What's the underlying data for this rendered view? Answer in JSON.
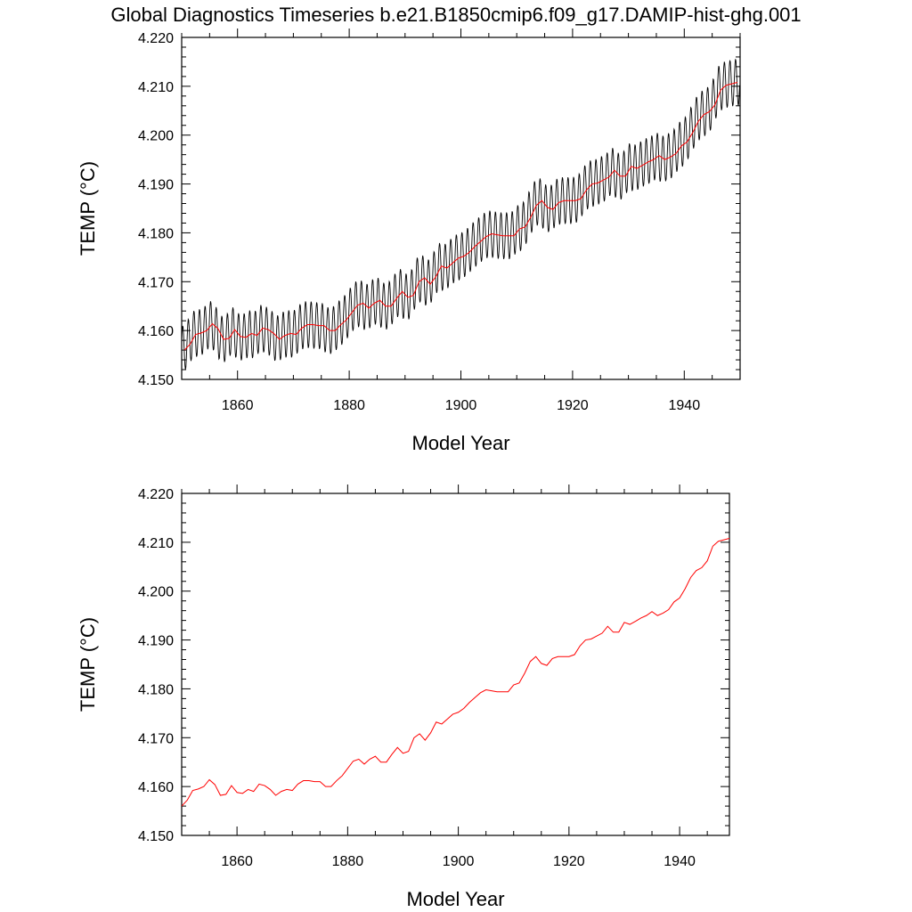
{
  "title": "Global Diagnostics Timeseries b.e21.B1850cmip6.f09_g17.DAMIP-hist-ghg.001",
  "chart_data": [
    {
      "type": "line",
      "xlabel": "Model Year",
      "ylabel": "TEMP (°C)",
      "xlim": [
        1850,
        1950
      ],
      "ylim": [
        4.15,
        4.22
      ],
      "xticks": [
        "1860",
        "1880",
        "1900",
        "1920",
        "1940"
      ],
      "yticks": [
        "4.150",
        "4.160",
        "4.170",
        "4.180",
        "4.190",
        "4.200",
        "4.210",
        "4.220"
      ],
      "grid": false,
      "series": [
        {
          "kind": "monthly",
          "color": "#000000",
          "amplitude": 0.0048,
          "base_series": "annual"
        },
        {
          "kind": "annual",
          "color": "#ff0000",
          "x": [
            1850,
            1851,
            1852,
            1853,
            1854,
            1855,
            1856,
            1857,
            1858,
            1859,
            1860,
            1861,
            1862,
            1863,
            1864,
            1865,
            1866,
            1867,
            1868,
            1869,
            1870,
            1871,
            1872,
            1873,
            1874,
            1875,
            1876,
            1877,
            1878,
            1879,
            1880,
            1881,
            1882,
            1883,
            1884,
            1885,
            1886,
            1887,
            1888,
            1889,
            1890,
            1891,
            1892,
            1893,
            1894,
            1895,
            1896,
            1897,
            1898,
            1899,
            1900,
            1901,
            1902,
            1903,
            1904,
            1905,
            1906,
            1907,
            1908,
            1909,
            1910,
            1911,
            1912,
            1913,
            1914,
            1915,
            1916,
            1917,
            1918,
            1919,
            1920,
            1921,
            1922,
            1923,
            1924,
            1925,
            1926,
            1927,
            1928,
            1929,
            1930,
            1931,
            1932,
            1933,
            1934,
            1935,
            1936,
            1937,
            1938,
            1939,
            1940,
            1941,
            1942,
            1943,
            1944,
            1945,
            1946,
            1947,
            1948,
            1949
          ],
          "y": [
            4.156,
            4.1572,
            4.1592,
            4.1595,
            4.16,
            4.1614,
            4.1604,
            4.1582,
            4.1584,
            4.1602,
            4.1588,
            4.1586,
            4.1594,
            4.159,
            4.1605,
            4.1602,
            4.1594,
            4.1582,
            4.159,
            4.1594,
            4.1592,
            4.1605,
            4.1612,
            4.1612,
            4.161,
            4.161,
            4.16,
            4.16,
            4.1612,
            4.1622,
            4.1637,
            4.1652,
            4.1656,
            4.1646,
            4.1656,
            4.1662,
            4.165,
            4.165,
            4.1666,
            4.168,
            4.1668,
            4.1672,
            4.17,
            4.1708,
            4.1695,
            4.171,
            4.1732,
            4.1728,
            4.1738,
            4.1748,
            4.1752,
            4.176,
            4.1772,
            4.1782,
            4.1792,
            4.1798,
            4.1796,
            4.1794,
            4.1794,
            4.1794,
            4.1808,
            4.1812,
            4.1832,
            4.1856,
            4.1866,
            4.1852,
            4.1848,
            4.1862,
            4.1866,
            4.1866,
            4.1866,
            4.187,
            4.1888,
            4.19,
            4.1902,
            4.1908,
            4.1914,
            4.1928,
            4.1916,
            4.1916,
            4.1936,
            4.1932,
            4.1938,
            4.1945,
            4.195,
            4.1958,
            4.195,
            4.1955,
            4.1962,
            4.1978,
            4.1986,
            4.2005,
            4.2028,
            4.2042,
            4.2048,
            4.2062,
            4.2092,
            4.2102,
            4.2105,
            4.2108
          ]
        }
      ]
    },
    {
      "type": "line",
      "xlabel": "Model Year",
      "ylabel": "TEMP (°C)",
      "xlim": [
        1850,
        1949
      ],
      "ylim": [
        4.15,
        4.22
      ],
      "xticks": [
        "1860",
        "1880",
        "1900",
        "1920",
        "1940"
      ],
      "yticks": [
        "4.150",
        "4.160",
        "4.170",
        "4.180",
        "4.190",
        "4.200",
        "4.210",
        "4.220"
      ],
      "grid": false,
      "series": [
        {
          "kind": "annual",
          "color": "#ff0000",
          "use_series_of_chart": 0
        }
      ]
    }
  ]
}
